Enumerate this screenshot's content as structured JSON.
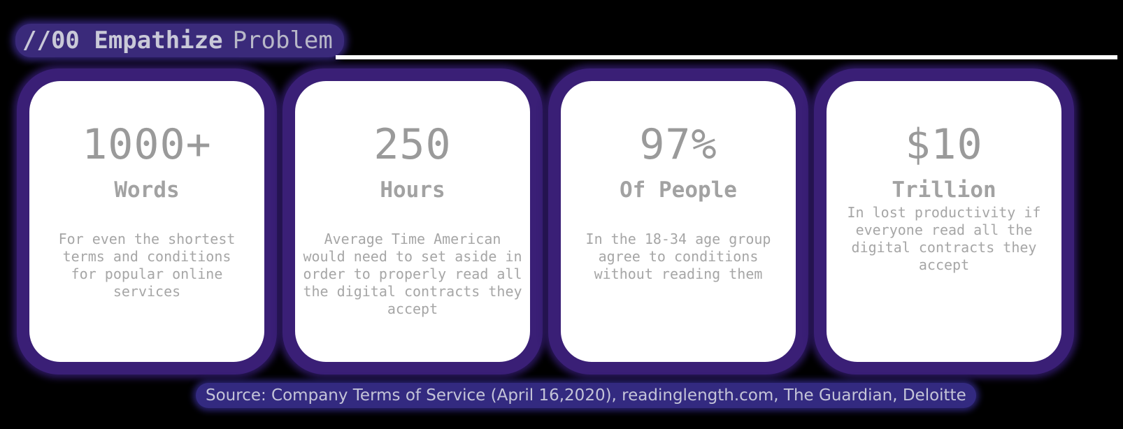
{
  "header": {
    "section": "//00 Empathize",
    "subtitle": "Problem"
  },
  "cards": [
    {
      "number": "1000+",
      "unit": "Words",
      "description": "For even the shortest terms and conditions for popular online services"
    },
    {
      "number": "250",
      "unit": "Hours",
      "description": "Average Time American would need to set aside in order to properly read all the digital contracts they accept"
    },
    {
      "number": "97%",
      "unit": "Of People",
      "description": "In the 18-34 age group agree to conditions without reading them"
    },
    {
      "number": "$10",
      "unit": "Trillion",
      "description": "In lost productivity if everyone read all the digital contracts they accept"
    }
  ],
  "source": "Source: Company Terms of Service (April 16,2020), readinglength.com, The Guardian, Deloitte"
}
